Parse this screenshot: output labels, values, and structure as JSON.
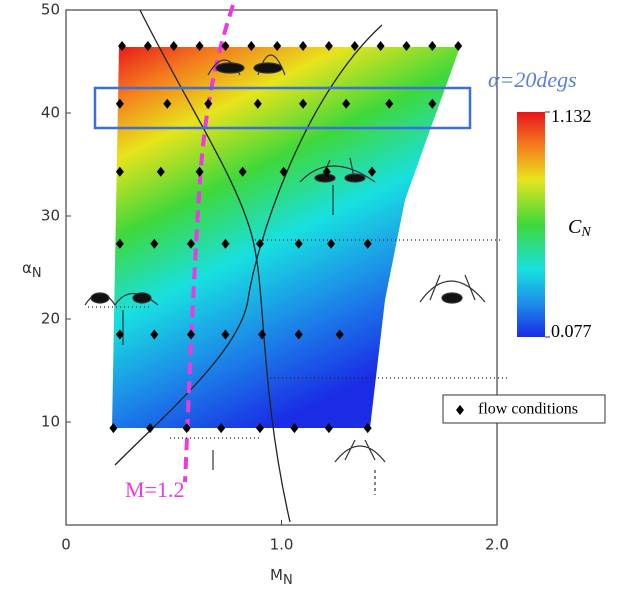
{
  "chart_data": {
    "type": "contour",
    "xlabel": "M",
    "xlabel_sub": "N",
    "ylabel": "α",
    "ylabel_sub": "N",
    "xlim": [
      0,
      2
    ],
    "xticks": [
      0,
      {
        "value": 1,
        "label": "1.0"
      },
      {
        "value": 2,
        "label": "2.0"
      }
    ],
    "ylim": [
      0,
      50
    ],
    "yticks": [
      10,
      20,
      30,
      40,
      50
    ],
    "colorbar": {
      "label": "C",
      "label_sub": "N",
      "clim": [
        0.077,
        1.132
      ],
      "ticks": [
        0.077,
        1.132
      ]
    },
    "annotations": {
      "box": "α=20degs",
      "mach": "M=1.2"
    },
    "series": [
      {
        "name": "flow conditions",
        "color": "#000000",
        "x": [
          0.26,
          0.38,
          0.5,
          0.62,
          0.74,
          0.86,
          0.98,
          1.1,
          1.22,
          1.34,
          1.46,
          1.58,
          1.7,
          1.82,
          0.25,
          0.47,
          0.66,
          0.89,
          1.1,
          1.3,
          1.5,
          1.7,
          0.25,
          0.44,
          0.62,
          0.82,
          1.01,
          1.21,
          1.42,
          0.25,
          0.41,
          0.58,
          0.74,
          0.9,
          1.08,
          1.23,
          1.4,
          0.25,
          0.41,
          0.58,
          0.74,
          0.91,
          1.08,
          1.27,
          0.22,
          0.39,
          0.56,
          0.72,
          0.9,
          1.06,
          1.22,
          1.4
        ],
        "y": [
          46.5,
          46.5,
          46.5,
          46.5,
          46.5,
          46.5,
          46.5,
          46.5,
          46.5,
          46.5,
          46.5,
          46.5,
          46.5,
          46.5,
          40.9,
          40.9,
          40.9,
          40.9,
          40.9,
          40.9,
          40.9,
          40.9,
          34.3,
          34.3,
          34.3,
          34.3,
          34.3,
          34.3,
          34.3,
          27.3,
          27.3,
          27.3,
          27.3,
          27.3,
          27.3,
          27.3,
          27.3,
          18.5,
          18.5,
          18.5,
          18.5,
          18.5,
          18.5,
          18.5,
          9.4,
          9.4,
          9.4,
          9.4,
          9.4,
          9.4,
          9.4,
          9.4
        ]
      }
    ]
  }
}
